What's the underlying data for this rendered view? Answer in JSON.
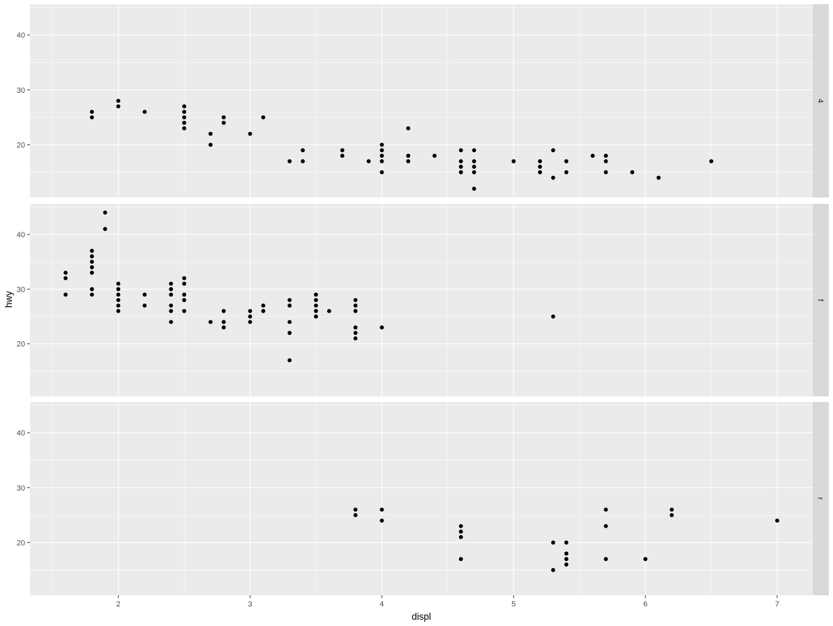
{
  "chart_data": {
    "type": "scatter",
    "xlabel": "displ",
    "ylabel": "hwy",
    "xlim": [
      1.33,
      7.27
    ],
    "ylim": [
      10.4,
      45.6
    ],
    "x_ticks": [
      "2",
      "3",
      "4",
      "5",
      "6",
      "7"
    ],
    "y_ticks": [
      "20",
      "30",
      "40"
    ],
    "grid": true,
    "facet_by": "drv",
    "facet_strip_position": "right",
    "colors": {
      "panel": "#ebebeb",
      "strip": "#d9d9d9",
      "point": "#000000"
    },
    "panels": [
      {
        "label": "4",
        "points": [
          [
            1.8,
            26
          ],
          [
            1.8,
            25
          ],
          [
            2.0,
            28
          ],
          [
            2.0,
            27
          ],
          [
            2.2,
            26
          ],
          [
            2.5,
            27
          ],
          [
            2.5,
            26
          ],
          [
            2.5,
            25
          ],
          [
            2.5,
            24
          ],
          [
            2.5,
            23
          ],
          [
            2.7,
            22
          ],
          [
            2.7,
            20
          ],
          [
            2.8,
            25
          ],
          [
            2.8,
            24
          ],
          [
            3.0,
            22
          ],
          [
            3.1,
            25
          ],
          [
            3.3,
            17
          ],
          [
            3.4,
            19
          ],
          [
            3.4,
            17
          ],
          [
            3.7,
            19
          ],
          [
            3.7,
            18
          ],
          [
            3.9,
            17
          ],
          [
            4.0,
            20
          ],
          [
            4.0,
            19
          ],
          [
            4.0,
            18
          ],
          [
            4.0,
            17
          ],
          [
            4.0,
            15
          ],
          [
            4.2,
            23
          ],
          [
            4.2,
            18
          ],
          [
            4.2,
            17
          ],
          [
            4.4,
            18
          ],
          [
            4.6,
            19
          ],
          [
            4.6,
            17
          ],
          [
            4.6,
            16
          ],
          [
            4.6,
            15
          ],
          [
            4.7,
            19
          ],
          [
            4.7,
            17
          ],
          [
            4.7,
            16
          ],
          [
            4.7,
            15
          ],
          [
            4.7,
            12
          ],
          [
            5.0,
            17
          ],
          [
            5.2,
            17
          ],
          [
            5.2,
            16
          ],
          [
            5.2,
            15
          ],
          [
            5.3,
            19
          ],
          [
            5.3,
            14
          ],
          [
            5.4,
            17
          ],
          [
            5.4,
            15
          ],
          [
            5.6,
            18
          ],
          [
            5.7,
            18
          ],
          [
            5.7,
            17
          ],
          [
            5.7,
            15
          ],
          [
            5.9,
            15
          ],
          [
            6.1,
            14
          ],
          [
            6.5,
            17
          ]
        ]
      },
      {
        "label": "f",
        "points": [
          [
            1.6,
            33
          ],
          [
            1.6,
            32
          ],
          [
            1.6,
            29
          ],
          [
            1.8,
            37
          ],
          [
            1.8,
            36
          ],
          [
            1.8,
            35
          ],
          [
            1.8,
            34
          ],
          [
            1.8,
            33
          ],
          [
            1.8,
            30
          ],
          [
            1.8,
            29
          ],
          [
            1.9,
            44
          ],
          [
            1.9,
            41
          ],
          [
            2.0,
            31
          ],
          [
            2.0,
            30
          ],
          [
            2.0,
            29
          ],
          [
            2.0,
            28
          ],
          [
            2.0,
            27
          ],
          [
            2.0,
            26
          ],
          [
            2.2,
            29
          ],
          [
            2.2,
            27
          ],
          [
            2.4,
            31
          ],
          [
            2.4,
            30
          ],
          [
            2.4,
            29
          ],
          [
            2.4,
            27
          ],
          [
            2.4,
            26
          ],
          [
            2.4,
            24
          ],
          [
            2.5,
            32
          ],
          [
            2.5,
            31
          ],
          [
            2.5,
            29
          ],
          [
            2.5,
            28
          ],
          [
            2.5,
            26
          ],
          [
            2.7,
            24
          ],
          [
            2.8,
            26
          ],
          [
            2.8,
            24
          ],
          [
            2.8,
            23
          ],
          [
            3.0,
            26
          ],
          [
            3.0,
            25
          ],
          [
            3.0,
            24
          ],
          [
            3.1,
            27
          ],
          [
            3.1,
            26
          ],
          [
            3.3,
            28
          ],
          [
            3.3,
            27
          ],
          [
            3.3,
            24
          ],
          [
            3.3,
            22
          ],
          [
            3.3,
            17
          ],
          [
            3.5,
            29
          ],
          [
            3.5,
            28
          ],
          [
            3.5,
            27
          ],
          [
            3.5,
            26
          ],
          [
            3.5,
            25
          ],
          [
            3.6,
            26
          ],
          [
            3.8,
            28
          ],
          [
            3.8,
            27
          ],
          [
            3.8,
            26
          ],
          [
            3.8,
            23
          ],
          [
            3.8,
            22
          ],
          [
            3.8,
            21
          ],
          [
            4.0,
            23
          ],
          [
            5.3,
            25
          ]
        ]
      },
      {
        "label": "r",
        "points": [
          [
            3.8,
            26
          ],
          [
            3.8,
            25
          ],
          [
            4.0,
            26
          ],
          [
            4.0,
            24
          ],
          [
            4.6,
            23
          ],
          [
            4.6,
            22
          ],
          [
            4.6,
            21
          ],
          [
            4.6,
            17
          ],
          [
            5.3,
            20
          ],
          [
            5.3,
            15
          ],
          [
            5.4,
            20
          ],
          [
            5.4,
            18
          ],
          [
            5.4,
            17
          ],
          [
            5.4,
            16
          ],
          [
            5.7,
            26
          ],
          [
            5.7,
            23
          ],
          [
            5.7,
            17
          ],
          [
            6.0,
            17
          ],
          [
            6.2,
            26
          ],
          [
            6.2,
            25
          ],
          [
            7.0,
            24
          ]
        ]
      }
    ]
  }
}
